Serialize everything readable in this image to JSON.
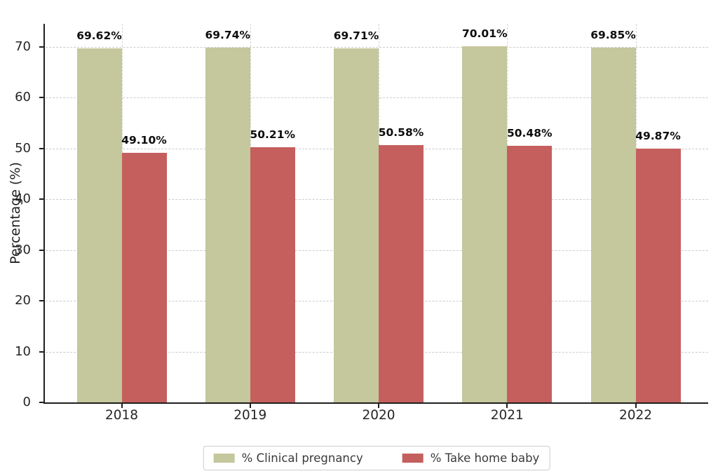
{
  "chart_data": {
    "type": "bar",
    "title": "",
    "xlabel": "",
    "ylabel": "Percentage (%)",
    "categories": [
      "2018",
      "2019",
      "2020",
      "2021",
      "2022"
    ],
    "series": [
      {
        "name": "% Clinical pregnancy",
        "color": "#c5c79c",
        "values": [
          69.62,
          69.74,
          69.71,
          70.01,
          69.85
        ],
        "labels": [
          "69.62%",
          "69.74%",
          "69.71%",
          "70.01%",
          "69.85%"
        ]
      },
      {
        "name": "% Take home baby",
        "color": "#c55f5e",
        "values": [
          49.1,
          50.21,
          50.58,
          50.48,
          49.87
        ],
        "labels": [
          "49.10%",
          "50.21%",
          "50.58%",
          "50.48%",
          "49.87%"
        ]
      }
    ],
    "yticks": [
      0,
      10,
      20,
      30,
      40,
      50,
      60,
      70
    ],
    "ylim": [
      0,
      74.5
    ],
    "grid": "dashed horizontal lines at yticks and dashed vertical lines at category centers",
    "legend_position": "bottom-center",
    "value_labels_shown": true
  },
  "colors": {
    "background": "#ffffff",
    "clinical_pregnancy_bar": "#c5c79c",
    "take_home_baby_bar": "#c55f5e",
    "gridline": "#cccccc",
    "axis_spine": "#1f1f1f",
    "tick_label": "#262626",
    "value_label": "#0d0d0d",
    "legend_border": "#cccccc",
    "legend_text": "#3a3a3a"
  }
}
